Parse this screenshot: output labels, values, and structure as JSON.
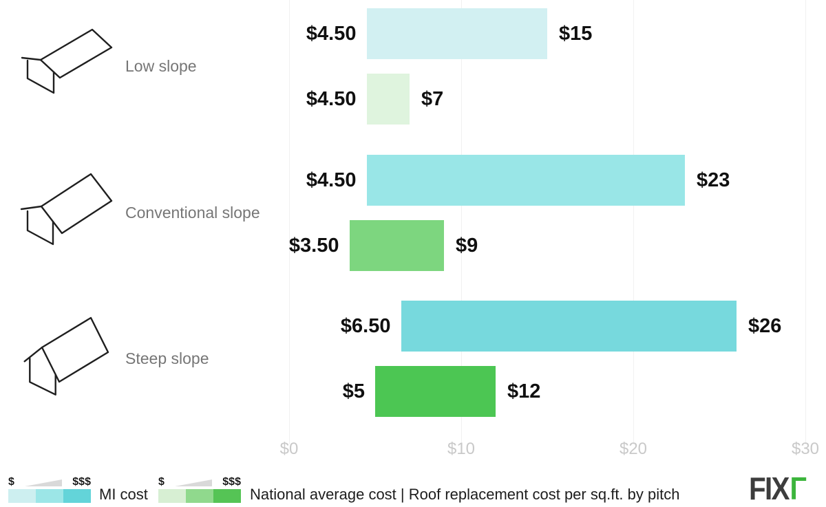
{
  "categories": [
    {
      "label": "Low slope"
    },
    {
      "label": "Conventional slope"
    },
    {
      "label": "Steep slope"
    }
  ],
  "chart_data": {
    "type": "bar",
    "orientation": "horizontal",
    "title": "Roof replacement cost per sq.ft. by pitch",
    "unit": "$ per sq.ft.",
    "categories": [
      "Low slope",
      "Conventional slope",
      "Steep slope"
    ],
    "series_names": [
      "MI cost",
      "National average cost"
    ],
    "x_axis": {
      "min": 0,
      "max": 30,
      "ticks": [
        {
          "value": 0,
          "label": "$0"
        },
        {
          "value": 10,
          "label": "$10"
        },
        {
          "value": 20,
          "label": "$20"
        },
        {
          "value": 30,
          "label": "$30"
        }
      ],
      "grid": true
    },
    "rows": [
      {
        "category": "Low slope",
        "series": "MI cost",
        "group_index": 0,
        "series_index": 0,
        "min": 4.5,
        "max": 15,
        "min_label": "$4.50",
        "max_label": "$15",
        "color": "#d2f0f2"
      },
      {
        "category": "Low slope",
        "series": "National average cost",
        "group_index": 0,
        "series_index": 1,
        "min": 4.5,
        "max": 7,
        "min_label": "$4.50",
        "max_label": "$7",
        "color": "#dff4de"
      },
      {
        "category": "Conventional slope",
        "series": "MI cost",
        "group_index": 1,
        "series_index": 0,
        "min": 4.5,
        "max": 23,
        "min_label": "$4.50",
        "max_label": "$23",
        "color": "#99e6e7"
      },
      {
        "category": "Conventional slope",
        "series": "National average cost",
        "group_index": 1,
        "series_index": 1,
        "min": 3.5,
        "max": 9,
        "min_label": "$3.50",
        "max_label": "$9",
        "color": "#7dd67f"
      },
      {
        "category": "Steep slope",
        "series": "MI cost",
        "group_index": 2,
        "series_index": 0,
        "min": 6.5,
        "max": 26,
        "min_label": "$6.50",
        "max_label": "$26",
        "color": "#77d9dd"
      },
      {
        "category": "Steep slope",
        "series": "National average cost",
        "group_index": 2,
        "series_index": 1,
        "min": 5,
        "max": 12,
        "min_label": "$5",
        "max_label": "$12",
        "color": "#4cc653"
      }
    ]
  },
  "legend": {
    "mi": {
      "label": "MI cost",
      "scale_min": "$",
      "scale_max": "$$$",
      "swatches": [
        "#cdeff0",
        "#9ce6e7",
        "#63d4d9"
      ]
    },
    "national": {
      "label": "National average cost | Roof replacement cost per sq.ft. by pitch",
      "scale_min": "$",
      "scale_max": "$$$",
      "swatches": [
        "#d7efd3",
        "#90d98d",
        "#55c455"
      ]
    }
  },
  "logo": {
    "fix": "FIX",
    "mark": "Γ",
    "green": "#3cb53c"
  }
}
